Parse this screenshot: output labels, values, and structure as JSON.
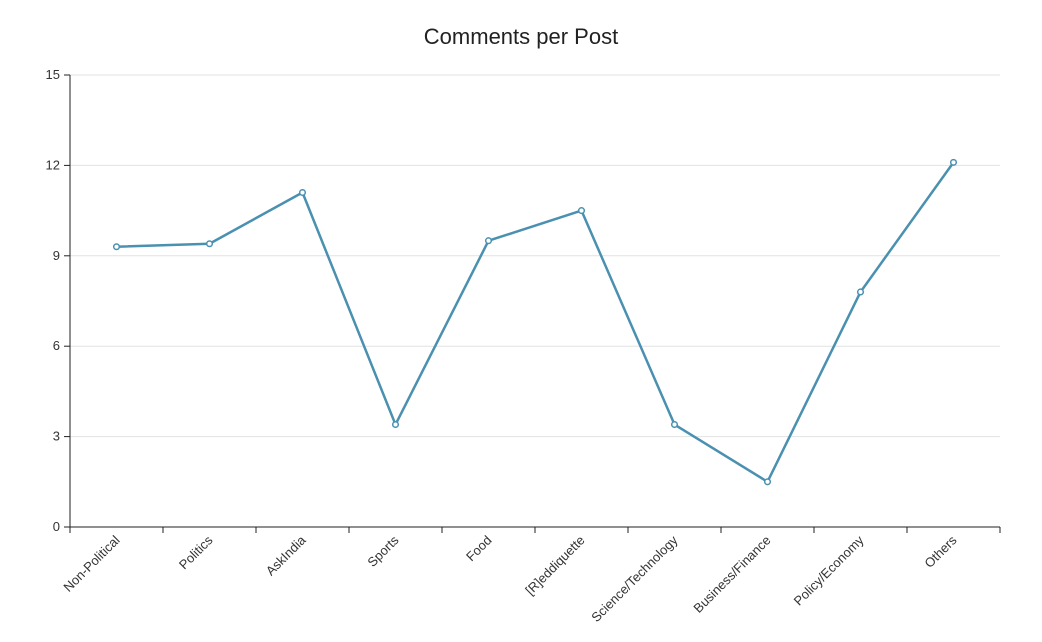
{
  "chart_data": {
    "type": "line",
    "title": "Comments per Post",
    "xlabel": "",
    "ylabel": "",
    "categories": [
      "Non-Political",
      "Politics",
      "AskIndia",
      "Sports",
      "Food",
      "[R]eddiquette",
      "Science/Technology",
      "Business/Finance",
      "Policy/Economy",
      "Others"
    ],
    "series": [
      {
        "values": [
          9.3,
          9.4,
          11.1,
          3.4,
          9.5,
          10.5,
          3.4,
          1.5,
          7.8,
          12.1
        ],
        "color": "#4a90b0"
      }
    ],
    "ylim": [
      0,
      15
    ],
    "yticks": [
      0,
      3,
      6,
      9,
      12,
      15
    ],
    "grid": true,
    "legend": "none"
  }
}
